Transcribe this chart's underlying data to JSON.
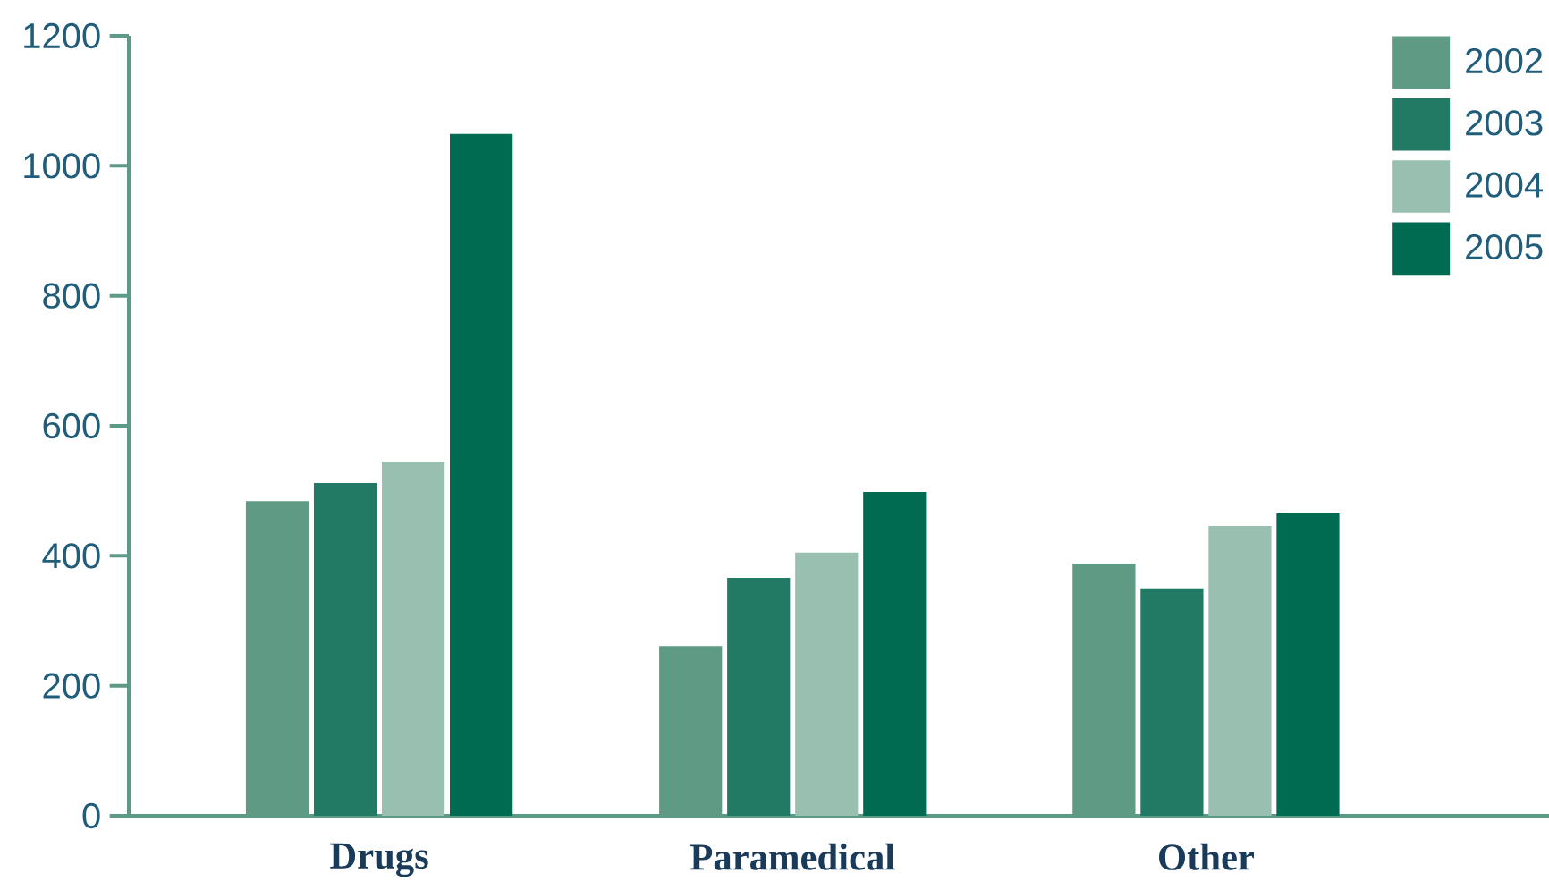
{
  "chart_data": {
    "type": "bar",
    "categories": [
      "Drugs",
      "Paramedical",
      "Other"
    ],
    "series": [
      {
        "name": "2002",
        "color": "#5e9a84",
        "values": [
          484,
          261,
          388
        ]
      },
      {
        "name": "2003",
        "color": "#227a65",
        "values": [
          512,
          366,
          350
        ]
      },
      {
        "name": "2004",
        "color": "#98bfb0",
        "values": [
          545,
          405,
          446
        ]
      },
      {
        "name": "2005",
        "color": "#006b50",
        "values": [
          1049,
          498,
          465
        ]
      }
    ],
    "ylim": [
      0,
      1200
    ],
    "yticks": [
      0,
      200,
      400,
      600,
      800,
      1000,
      1200
    ],
    "grid": false,
    "legend": "top right"
  }
}
